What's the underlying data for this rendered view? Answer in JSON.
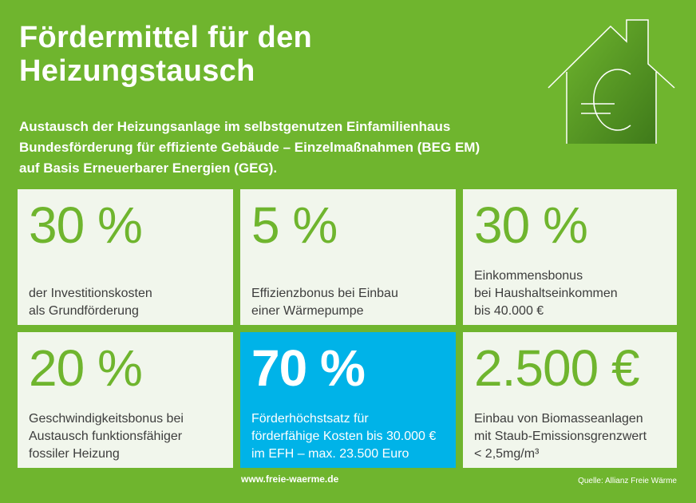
{
  "title_lines": [
    "Fördermittel für den",
    "Heizungstausch"
  ],
  "subtitle_lines": [
    "Austausch der Heizungsanlage im selbstgenutzen Einfamilienhaus",
    "Bundesförderung für effiziente Gebäude – Einzelmaßnahmen (BEG EM)",
    "auf Basis Erneuerbarer Energien (GEG)."
  ],
  "cards": [
    {
      "value": "30 %",
      "text": "der Investitionskosten\nals Grundförderung"
    },
    {
      "value": "5 %",
      "text": "Effizienzbonus bei Einbau\neiner Wärmepumpe"
    },
    {
      "value": "30 %",
      "text": "Einkommensbonus\nbei Haushaltseinkommen\nbis 40.000 €"
    },
    {
      "value": "20 %",
      "text": "Geschwindigkeitsbonus bei\nAustausch funktionsfähiger\nfossiler Heizung"
    },
    {
      "value": "70 %",
      "text": "Förderhöchstsatz für\nförderfähige Kosten bis 30.000 €\nim EFH – max. 23.500 Euro"
    },
    {
      "value": "2.500 €",
      "text": "Einbau von Biomasseanlagen\nmit Staub-Emissionsgrenzwert\n< 2,5mg/m³"
    }
  ],
  "footer": {
    "url": "www.freie-waerme.de",
    "source": "Quelle: Allianz Freie Wärme"
  },
  "colors": {
    "background": "#6fb52e",
    "card": "#f1f6ec",
    "highlight": "#00b3e8"
  },
  "icons": {
    "logo": "house-euro-icon"
  }
}
